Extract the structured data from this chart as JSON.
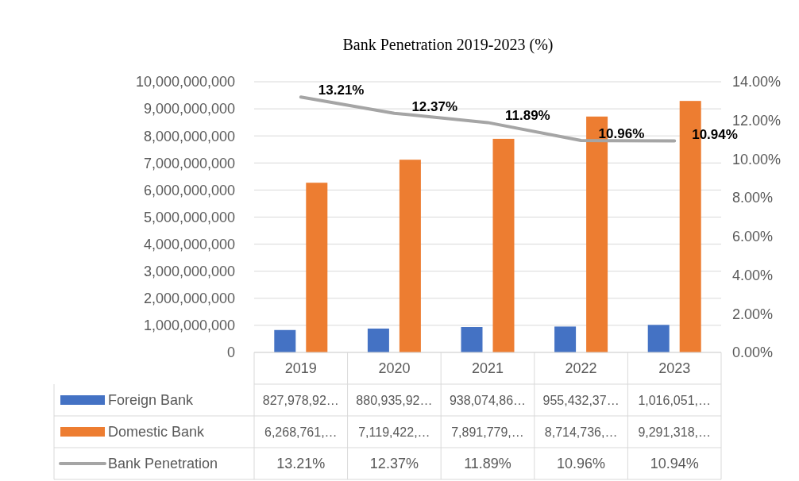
{
  "chart_data": {
    "type": "bar",
    "title": "Bank Penetration 2019-2023 (%)",
    "categories": [
      "2019",
      "2020",
      "2021",
      "2022",
      "2023"
    ],
    "series": [
      {
        "name": "Foreign Bank",
        "color": "#4472c4",
        "values": [
          827978920,
          880935920,
          938074860,
          955432370,
          1016051000
        ],
        "value_labels": [
          "827,978,92…",
          "880,935,92…",
          "938,074,86…",
          "955,432,37…",
          "1,016,051,…"
        ]
      },
      {
        "name": "Domestic Bank",
        "color": "#ed7d31",
        "values": [
          6268761000,
          7119422000,
          7891779000,
          8714736000,
          9291318000
        ],
        "value_labels": [
          "6,268,761,…",
          "7,119,422,…",
          "7,891,779,…",
          "8,714,736,…",
          "9,291,318,…"
        ]
      },
      {
        "name": "Bank Penetration",
        "type": "line",
        "axis": "y2",
        "color": "#a5a5a5",
        "values": [
          13.21,
          12.37,
          11.89,
          10.96,
          10.94
        ],
        "value_labels": [
          "13.21%",
          "12.37%",
          "11.89%",
          "10.96%",
          "10.94%"
        ]
      }
    ],
    "ylim": [
      0,
      10000000000
    ],
    "yticks": [
      0,
      {
        "value": 1000000000,
        "label": "1,000,000,000"
      },
      {
        "value": 2000000000,
        "label": "2,000,000,000"
      },
      {
        "value": 3000000000,
        "label": "3,000,000,000"
      },
      {
        "value": 4000000000,
        "label": "4,000,000,000"
      },
      {
        "value": 5000000000,
        "label": "5,000,000,000"
      },
      {
        "value": 6000000000,
        "label": "6,000,000,000"
      },
      {
        "value": 7000000000,
        "label": "7,000,000,000"
      },
      {
        "value": 8000000000,
        "label": "8,000,000,000"
      },
      {
        "value": 9000000000,
        "label": "9,000,000,000"
      },
      {
        "value": 10000000000,
        "label": "10,000,000,000"
      }
    ],
    "y2lim": [
      0,
      14
    ],
    "y2ticks": [
      {
        "value": 0,
        "label": "0.00%"
      },
      {
        "value": 2,
        "label": "2.00%"
      },
      {
        "value": 4,
        "label": "4.00%"
      },
      {
        "value": 6,
        "label": "6.00%"
      },
      {
        "value": 8,
        "label": "8.00%"
      },
      {
        "value": 10,
        "label": "10.00%"
      },
      {
        "value": 12,
        "label": "12.00%"
      },
      {
        "value": 14,
        "label": "14.00%"
      }
    ],
    "grid": "y",
    "legend": "bottom",
    "line_style": "solid",
    "marker": "none"
  }
}
